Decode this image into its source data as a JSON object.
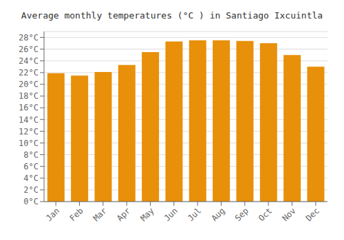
{
  "chart_data": {
    "type": "bar",
    "title": "Average monthly temperatures (°C ) in Santiago Ixcuintla",
    "categories": [
      "Jan",
      "Feb",
      "Mar",
      "Apr",
      "May",
      "Jun",
      "Jul",
      "Aug",
      "Sep",
      "Oct",
      "Nov",
      "Dec"
    ],
    "values": [
      21.9,
      21.5,
      22.1,
      23.3,
      25.5,
      27.3,
      27.5,
      27.5,
      27.4,
      27.0,
      25.0,
      23.0
    ],
    "color": "#E8900A",
    "ylim": [
      0,
      29
    ],
    "yticks": [
      {
        "value": 0,
        "label": "0°C"
      },
      {
        "value": 2,
        "label": "2°C"
      },
      {
        "value": 4,
        "label": "4°C"
      },
      {
        "value": 6,
        "label": "6°C"
      },
      {
        "value": 8,
        "label": "8°C"
      },
      {
        "value": 10,
        "label": "10°C"
      },
      {
        "value": 12,
        "label": "12°C"
      },
      {
        "value": 14,
        "label": "14°C"
      },
      {
        "value": 16,
        "label": "16°C"
      },
      {
        "value": 18,
        "label": "18°C"
      },
      {
        "value": 20,
        "label": "20°C"
      },
      {
        "value": 22,
        "label": "22°C"
      },
      {
        "value": 24,
        "label": "24°C"
      },
      {
        "value": 26,
        "label": "26°C"
      },
      {
        "value": 28,
        "label": "28°C"
      }
    ],
    "grid": true
  }
}
